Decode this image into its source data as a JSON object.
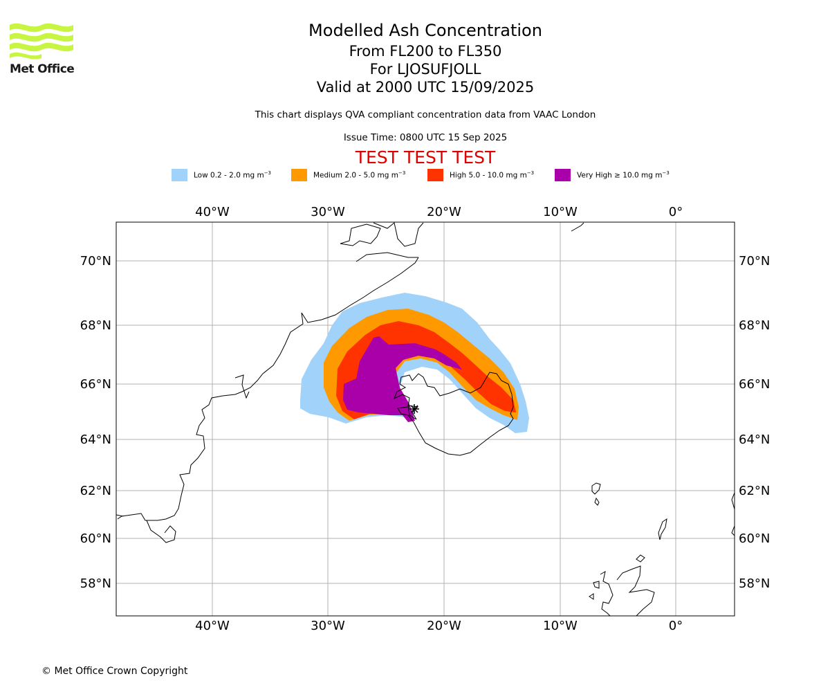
{
  "logo": {
    "text": "Met Office",
    "icon": "met-office-wave-logo",
    "color": "#c8f542"
  },
  "titles": {
    "main": "Modelled Ash Concentration",
    "levels": "From FL200 to FL350",
    "volcano": "For LJOSUFJOLL",
    "valid": "Valid at 2000 UTC 15/09/2025"
  },
  "notes": {
    "compliance": "This chart displays QVA compliant concentration data from VAAC London",
    "issue_time": "Issue Time: 0800 UTC 15 Sep 2025"
  },
  "test_banner": "TEST TEST TEST",
  "legend": [
    {
      "level": "Low",
      "text": "Low 0.2 - 2.0 mg m",
      "exp": "−3",
      "color": "#a0d2fa"
    },
    {
      "level": "Medium",
      "text": "Medium 2.0 - 5.0 mg m",
      "exp": "−3",
      "color": "#ff9900"
    },
    {
      "level": "High",
      "text": "High 5.0 - 10.0 mg m",
      "exp": "−3",
      "color": "#ff3300"
    },
    {
      "level": "Very High",
      "text": "Very High  ≥  10.0 mg m",
      "exp": "−3",
      "color": "#aa00aa"
    }
  ],
  "map": {
    "lon_ticks": [
      "40°W",
      "30°W",
      "20°W",
      "10°W",
      "0°"
    ],
    "lat_ticks": [
      "70°N",
      "68°N",
      "66°N",
      "64°N",
      "62°N",
      "60°N",
      "58°N"
    ]
  },
  "copyright": "© Met Office Crown Copyright"
}
